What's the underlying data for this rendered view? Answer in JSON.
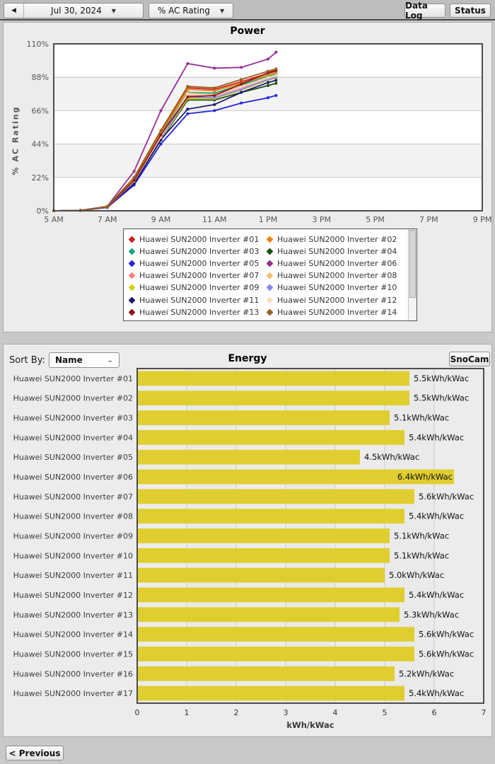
{
  "toolbar": {
    "prev_day": "◀",
    "date": "Jul 30, 2024",
    "caret": "▼",
    "metric": "% AC Rating",
    "data_log": "Data Log",
    "status": "Status"
  },
  "power": {
    "title": "Power",
    "ylabel": "% AC Rating",
    "chart_data": {
      "type": "line",
      "x_hours": [
        5,
        6,
        7,
        8,
        9,
        10,
        11,
        12,
        13,
        13.3
      ],
      "xlim_hours": [
        5,
        21
      ],
      "xticks": [
        5,
        7,
        9,
        11,
        13,
        15,
        17,
        19,
        21
      ],
      "xtick_labels": [
        "5 AM",
        "7 AM",
        "9 AM",
        "11 AM",
        "1 PM",
        "3 PM",
        "5 PM",
        "7 PM",
        "9 PM"
      ],
      "yticks": [
        0,
        22,
        44,
        66,
        88,
        110
      ],
      "ytick_labels": [
        "0%",
        "22%",
        "44%",
        "66%",
        "88%",
        "110%"
      ],
      "ylim": [
        0,
        110
      ],
      "grid": true,
      "band_color": "#f3f3f3",
      "series": [
        {
          "name": "Huawei SUN2000 Inverter #01",
          "color": "#cc2020",
          "values": [
            0,
            0.3,
            2.7,
            21,
            52,
            81,
            80,
            85,
            90.5,
            92
          ]
        },
        {
          "name": "Huawei SUN2000 Inverter #02",
          "color": "#ee8811",
          "values": [
            0,
            0.3,
            2.7,
            21,
            51,
            80,
            79,
            84,
            89.5,
            91
          ]
        },
        {
          "name": "Huawei SUN2000 Inverter #03",
          "color": "#18a47c",
          "values": [
            0,
            0.3,
            2.6,
            20,
            50,
            78,
            77.5,
            83,
            88.5,
            90
          ]
        },
        {
          "name": "Huawei SUN2000 Inverter #04",
          "color": "#1d4f10",
          "values": [
            0,
            0.3,
            2.3,
            18,
            46.5,
            73,
            73,
            78,
            82.5,
            84
          ]
        },
        {
          "name": "Huawei SUN2000 Inverter #05",
          "color": "#2424dd",
          "values": [
            0,
            0.3,
            2.2,
            17,
            44,
            64,
            66,
            71,
            74.5,
            76
          ]
        },
        {
          "name": "Huawei SUN2000 Inverter #06",
          "color": "#952d95",
          "values": [
            0,
            0.3,
            3.0,
            26,
            66,
            97,
            94,
            94.5,
            100,
            104.5
          ]
        },
        {
          "name": "Huawei SUN2000 Inverter #07",
          "color": "#ff8585",
          "values": [
            0,
            0.3,
            2.5,
            19,
            48,
            76,
            75.5,
            81,
            87,
            88.5
          ]
        },
        {
          "name": "Huawei SUN2000 Inverter #08",
          "color": "#f6c077",
          "values": [
            0,
            0.3,
            2.5,
            20,
            49,
            77.5,
            76.5,
            82,
            88,
            89.5
          ]
        },
        {
          "name": "Huawei SUN2000 Inverter #09",
          "color": "#d2d216",
          "values": [
            0,
            0.3,
            2.4,
            18.5,
            47,
            74,
            74,
            79.5,
            86,
            87.5
          ]
        },
        {
          "name": "Huawei SUN2000 Inverter #10",
          "color": "#8787f2",
          "values": [
            0,
            0.3,
            2.4,
            19,
            47.5,
            75,
            74.5,
            80,
            86.5,
            88
          ]
        },
        {
          "name": "Huawei SUN2000 Inverter #11",
          "color": "#1b1b66",
          "values": [
            0,
            0.3,
            2.3,
            18,
            47,
            67,
            70,
            78,
            84.5,
            86
          ]
        },
        {
          "name": "Huawei SUN2000 Inverter #12",
          "color": "#fbd9c0",
          "values": [
            0,
            0.3,
            2.5,
            19.5,
            48.5,
            77,
            76,
            81.5,
            87.5,
            89
          ]
        },
        {
          "name": "Huawei SUN2000 Inverter #13",
          "color": "#8c1616",
          "values": [
            0,
            0.3,
            2.6,
            20,
            50,
            75,
            76,
            83.5,
            91,
            92.5
          ]
        },
        {
          "name": "Huawei SUN2000 Inverter #14",
          "color": "#9c5f1e",
          "values": [
            0,
            0.3,
            2.8,
            22,
            53,
            82,
            81,
            86.5,
            92,
            93.5
          ]
        }
      ]
    }
  },
  "energy": {
    "sort_by_label": "Sort By:",
    "sort_value": "Name",
    "sort_caret": "⌄",
    "title": "Energy",
    "snocam": "SnoCam",
    "chart_data": {
      "type": "bar",
      "orientation": "horizontal",
      "bar_color": "#e0ce30",
      "band_color": "#eaeaea",
      "xlabel": "kWh/kWac",
      "xlim": [
        0,
        7
      ],
      "xticks": [
        0,
        1,
        2,
        3,
        4,
        5,
        6,
        7
      ],
      "xtick_labels": [
        "0",
        "1",
        "2",
        "3",
        "4",
        "5",
        "6",
        "7"
      ],
      "categories": [
        "Huawei SUN2000 Inverter #01",
        "Huawei SUN2000 Inverter #02",
        "Huawei SUN2000 Inverter #03",
        "Huawei SUN2000 Inverter #04",
        "Huawei SUN2000 Inverter #05",
        "Huawei SUN2000 Inverter #06",
        "Huawei SUN2000 Inverter #07",
        "Huawei SUN2000 Inverter #08",
        "Huawei SUN2000 Inverter #09",
        "Huawei SUN2000 Inverter #10",
        "Huawei SUN2000 Inverter #11",
        "Huawei SUN2000 Inverter #12",
        "Huawei SUN2000 Inverter #13",
        "Huawei SUN2000 Inverter #14",
        "Huawei SUN2000 Inverter #15",
        "Huawei SUN2000 Inverter #16",
        "Huawei SUN2000 Inverter #17"
      ],
      "values": [
        5.5,
        5.5,
        5.1,
        5.4,
        4.5,
        6.4,
        5.6,
        5.4,
        5.1,
        5.1,
        5.0,
        5.4,
        5.3,
        5.6,
        5.6,
        5.2,
        5.4
      ],
      "value_labels": [
        "5.5kWh/kWac",
        "5.5kWh/kWac",
        "5.1kWh/kWac",
        "5.4kWh/kWac",
        "4.5kWh/kWac",
        "6.4kWh/kWac",
        "5.6kWh/kWac",
        "5.4kWh/kWac",
        "5.1kWh/kWac",
        "5.1kWh/kWac",
        "5.0kWh/kWac",
        "5.4kWh/kWac",
        "5.3kWh/kWac",
        "5.6kWh/kWac",
        "5.6kWh/kWac",
        "5.2kWh/kWac",
        "5.4kWh/kWac"
      ]
    }
  },
  "footer": {
    "previous": "< Previous"
  }
}
